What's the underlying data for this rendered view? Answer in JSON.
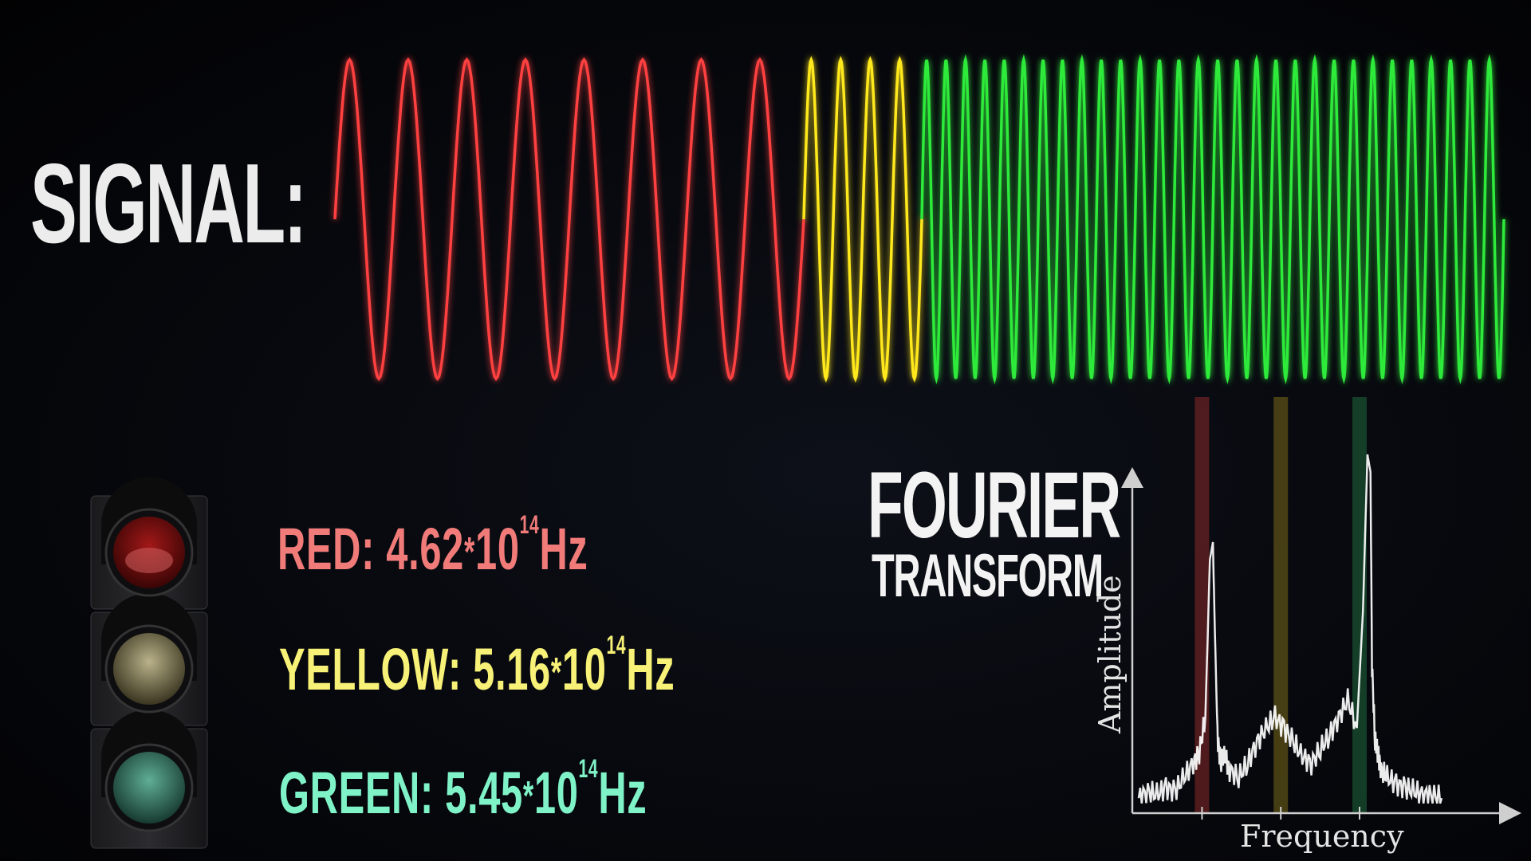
{
  "title": "SIGNAL:",
  "rows": [
    {
      "name": "RED",
      "sep": ":",
      "mantissa": "4.62",
      "op": "*",
      "base": "10",
      "exp": "14",
      "unit": "Hz",
      "color": "#f07b79"
    },
    {
      "name": "YELLOW",
      "sep": ":",
      "mantissa": "5.16",
      "op": "*",
      "base": "10",
      "exp": "14",
      "unit": "Hz",
      "color": "#f7f177"
    },
    {
      "name": "GREEN",
      "sep": ":",
      "mantissa": "5.45",
      "op": "*",
      "base": "10",
      "exp": "14",
      "unit": "Hz",
      "color": "#7ff2c8"
    }
  ],
  "fourier": {
    "line1": "FOURIER",
    "line2": "TRANSFORM"
  },
  "signal": {
    "segments": [
      {
        "color": "#ff4040",
        "cycles": 8
      },
      {
        "color": "#ffe81a",
        "cycles": 4
      },
      {
        "color": "#2eea3a",
        "cycles": 30
      }
    ]
  },
  "chart_data": {
    "type": "line",
    "xlabel": "Frequency",
    "ylabel": "Amplitude",
    "bands": [
      {
        "color": "#8b2a2a",
        "label": "red"
      },
      {
        "color": "#7a6a1a",
        "label": "yellow"
      },
      {
        "color": "#1f6a3e",
        "label": "green"
      }
    ],
    "series": [
      {
        "x": [
          0.0,
          0.03,
          0.06,
          0.09,
          0.12,
          0.15,
          0.18,
          0.2,
          0.22,
          0.235,
          0.245,
          0.25,
          0.26,
          0.27,
          0.285,
          0.3,
          0.33,
          0.36,
          0.39,
          0.42,
          0.45,
          0.48,
          0.51,
          0.54,
          0.57,
          0.6,
          0.63,
          0.66,
          0.69,
          0.72,
          0.74,
          0.755,
          0.765,
          0.77,
          0.78,
          0.79,
          0.8,
          0.82,
          0.85,
          0.88,
          0.91,
          0.94,
          0.97,
          1.0
        ],
        "y": [
          0.02,
          0.04,
          0.03,
          0.05,
          0.04,
          0.08,
          0.12,
          0.15,
          0.25,
          0.7,
          0.75,
          0.55,
          0.2,
          0.12,
          0.14,
          0.1,
          0.08,
          0.12,
          0.18,
          0.22,
          0.25,
          0.22,
          0.18,
          0.14,
          0.12,
          0.16,
          0.2,
          0.25,
          0.3,
          0.22,
          0.55,
          1.0,
          0.95,
          0.4,
          0.18,
          0.15,
          0.1,
          0.08,
          0.06,
          0.05,
          0.04,
          0.03,
          0.03,
          0.02
        ]
      }
    ]
  }
}
